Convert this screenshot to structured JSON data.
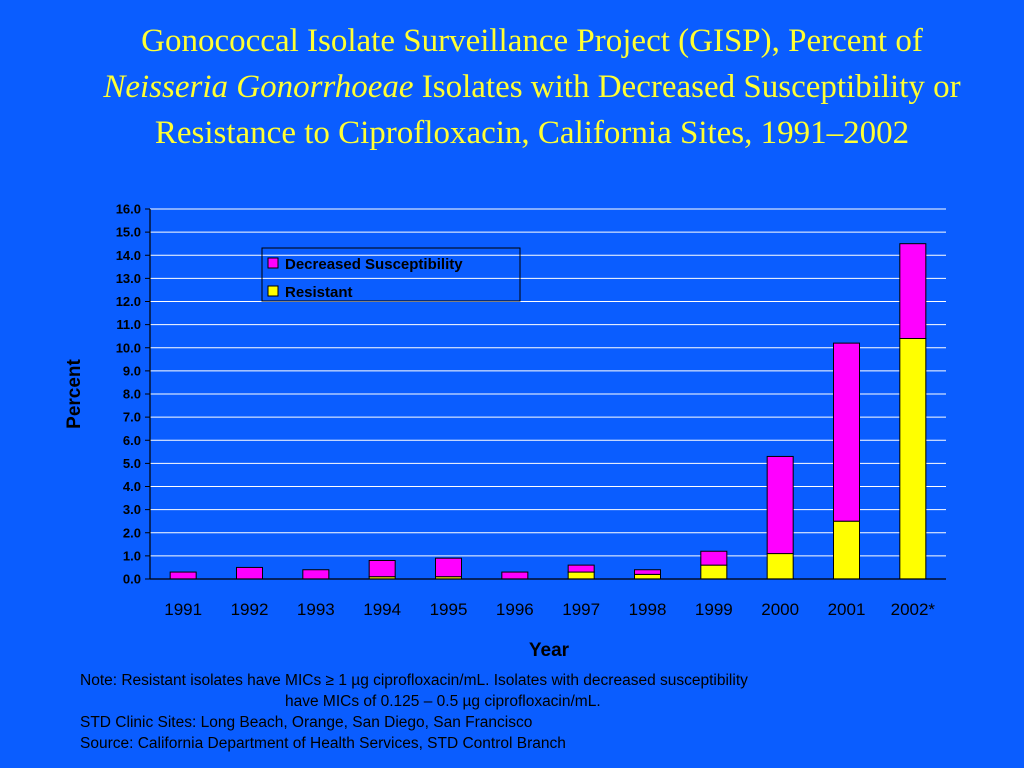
{
  "title": {
    "part1": "Gonococcal Isolate Surveillance Project (GISP), Percent of",
    "part2_italic": "Neisseria Gonorrhoeae",
    "part3": " Isolates with Decreased Susceptibility or Resistance to   Ciprofloxacin, California Sites, 1991–2002"
  },
  "colors": {
    "background": "#0a5dff",
    "title": "#ffff33",
    "decreased_susceptibility": "#ff00ff",
    "resistant": "#ffff00",
    "gridline": "#ffffff",
    "axis": "#000000"
  },
  "chart_data": {
    "type": "bar",
    "stacked": true,
    "categories": [
      "1991",
      "1992",
      "1993",
      "1994",
      "1995",
      "1996",
      "1997",
      "1998",
      "1999",
      "2000",
      "2001",
      "2002*"
    ],
    "series": [
      {
        "name": "Resistant",
        "values": [
          0.0,
          0.0,
          0.0,
          0.1,
          0.1,
          0.0,
          0.3,
          0.2,
          0.6,
          1.1,
          2.5,
          10.4
        ]
      },
      {
        "name": "Decreased Susceptibility",
        "values": [
          0.3,
          0.5,
          0.4,
          0.7,
          0.8,
          0.3,
          0.3,
          0.2,
          0.6,
          4.2,
          7.7,
          4.1
        ]
      }
    ],
    "xlabel": "Year",
    "ylabel": "Percent",
    "ylim": [
      0,
      16
    ],
    "ytick_step": 1,
    "y_tick_labels": [
      "0.0",
      "1.0",
      "2.0",
      "3.0",
      "4.0",
      "5.0",
      "6.0",
      "7.0",
      "8.0",
      "9.0",
      "10.0",
      "11.0",
      "12.0",
      "13.0",
      "14.0",
      "15.0",
      "16.0"
    ],
    "grid": true,
    "legend_placement": "upper-left-center",
    "legend": [
      "Decreased Susceptibility",
      "Resistant"
    ]
  },
  "notes": {
    "line1": "Note: Resistant isolates have MICs ≥ 1 µg ciprofloxacin/mL.  Isolates with decreased susceptibility",
    "line2": "have MICs of 0.125 – 0.5 µg ciprofloxacin/mL.",
    "line3": "STD Clinic Sites: Long Beach, Orange, San Diego, San Francisco",
    "line4": "Source: California Department of Health Services, STD Control Branch"
  }
}
